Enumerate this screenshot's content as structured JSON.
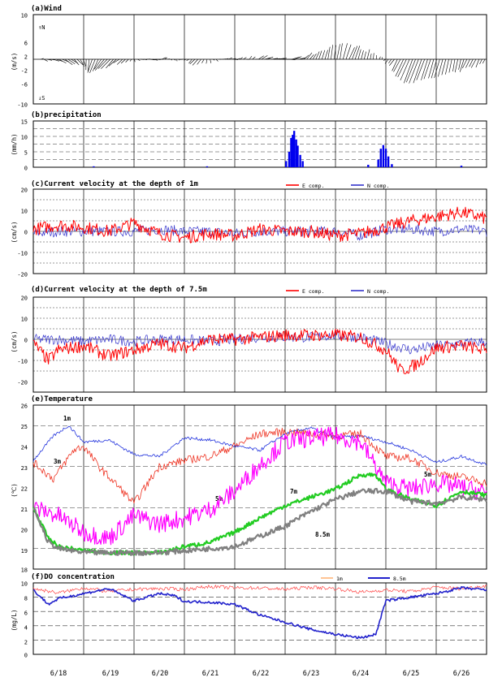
{
  "chart_data": [
    {
      "id": "wind",
      "type": "vector",
      "title": "(a)Wind",
      "ylabel": "(m/s)",
      "ylim": [
        -10,
        10
      ],
      "yticks": [
        "10",
        "6",
        "2",
        "-2",
        "-6",
        "-10"
      ],
      "annotations": [
        {
          "text": "↑N"
        },
        {
          "text": "↓S"
        }
      ],
      "series": [
        {
          "name": "wind-vectors",
          "color": "#000000",
          "x": [
            0,
            0.3,
            0.6,
            0.9,
            1.2,
            1.5,
            1.8,
            2.1,
            2.4,
            2.7,
            3,
            3.3,
            3.6,
            3.9,
            4.2,
            4.5,
            4.8,
            5.1,
            5.4,
            5.7,
            6,
            6.3,
            6.6,
            6.9,
            7.2,
            7.5,
            7.8,
            8.1,
            8.4,
            8.7,
            9
          ],
          "u": [
            0.5,
            1,
            1.5,
            1,
            -1,
            -2,
            -1,
            0.5,
            1,
            0.5,
            -0.5,
            -1,
            0.5,
            1,
            0.5,
            1,
            1.5,
            1.5,
            1,
            0.5,
            0.5,
            1,
            0.5,
            0,
            -1,
            -2,
            -1.5,
            -1,
            -0.5,
            -1,
            -0.5
          ],
          "v": [
            0,
            -0.3,
            -0.8,
            -1.5,
            -3,
            -2,
            -0.8,
            -0.2,
            0,
            0.2,
            -0.5,
            -1,
            -0.5,
            0,
            0.3,
            0.5,
            0.2,
            0,
            1,
            2,
            3.5,
            3,
            2,
            0.5,
            -2,
            -5,
            -5,
            -4,
            -3,
            -2,
            -1
          ]
        }
      ]
    },
    {
      "id": "precip",
      "type": "bar",
      "title": "(b)precipitation",
      "ylabel": "(mm/h)",
      "ylim": [
        0,
        15
      ],
      "yticks": [
        "15",
        "10",
        "5",
        "0"
      ],
      "series": [
        {
          "name": "precipitation",
          "color": "#0000ee",
          "x": [
            1.2,
            3.45,
            5.02,
            5.08,
            5.12,
            5.15,
            5.18,
            5.22,
            5.25,
            5.3,
            5.35,
            6.65,
            6.85,
            6.9,
            6.95,
            7.0,
            7.05,
            7.12,
            8.5
          ],
          "values": [
            0.3,
            0.3,
            2,
            5,
            9.5,
            10.5,
            11.8,
            9,
            7,
            4,
            2,
            0.8,
            2.5,
            6,
            7.2,
            6,
            3.5,
            1,
            0.5
          ]
        }
      ]
    },
    {
      "id": "cur1",
      "type": "line",
      "title": "(c)Current velocity at the depth of 1m",
      "ylabel": "(cm/s)",
      "ylim": [
        -20,
        20
      ],
      "yticks": [
        "20",
        "10",
        "0",
        "-10",
        "-20"
      ],
      "series": [
        {
          "name": "E comp.",
          "color": "#ff0000",
          "x": [
            0,
            0.5,
            1,
            1.5,
            2,
            2.5,
            3,
            3.5,
            4,
            4.5,
            5,
            5.5,
            6,
            6.5,
            7,
            7.5,
            8,
            8.5,
            9
          ],
          "values": [
            1,
            3,
            2,
            0,
            4,
            -1,
            -3,
            -1,
            -2,
            1,
            0,
            0,
            -2,
            -1,
            2,
            5,
            7,
            9,
            6
          ]
        },
        {
          "name": "N comp.",
          "color": "#3333cc",
          "x": [
            0,
            0.5,
            1,
            1.5,
            2,
            2.5,
            3,
            3.5,
            4,
            4.5,
            5,
            5.5,
            6,
            6.5,
            7,
            7.5,
            8,
            8.5,
            9
          ],
          "values": [
            -1,
            0,
            0,
            0,
            0,
            1,
            0,
            0,
            -1,
            0,
            0,
            0,
            0,
            -2,
            1,
            1,
            0,
            1,
            0
          ]
        }
      ]
    },
    {
      "id": "cur75",
      "type": "line",
      "title": "(d)Current velocity at the depth of 7.5m",
      "ylabel": "(cm/s)",
      "ylim": [
        -25,
        20
      ],
      "yticks": [
        "20",
        "10",
        "0",
        "-10",
        "-20"
      ],
      "series": [
        {
          "name": "E comp.",
          "color": "#ff0000",
          "x": [
            0,
            0.3,
            0.5,
            1,
            1.5,
            2,
            2.5,
            3,
            3.5,
            4,
            4.5,
            5,
            5.5,
            6,
            6.5,
            7,
            7.3,
            7.6,
            8,
            8.5,
            9
          ],
          "values": [
            -2,
            -10,
            -5,
            -3,
            -8,
            -5,
            -2,
            -4,
            0,
            0,
            1,
            2,
            2,
            2,
            1,
            -5,
            -15,
            -12,
            -4,
            -3,
            -5
          ]
        },
        {
          "name": "N comp.",
          "color": "#3333cc",
          "x": [
            0,
            0.5,
            1,
            1.5,
            2,
            2.5,
            3,
            3.5,
            4,
            4.5,
            5,
            5.5,
            6,
            6.5,
            7,
            7.5,
            8,
            8.5,
            9
          ],
          "values": [
            0,
            0,
            -1,
            0,
            -1,
            0,
            0,
            -1,
            0,
            1,
            1,
            1,
            2,
            1,
            -2,
            -5,
            -3,
            -2,
            -1
          ]
        }
      ]
    },
    {
      "id": "temp",
      "type": "line",
      "title": "(e)Temperature",
      "ylabel": "(℃)",
      "ylim": [
        18,
        26
      ],
      "yticks": [
        "26",
        "25",
        "24",
        "23",
        "22",
        "21",
        "20",
        "19",
        "18"
      ],
      "annotations": [
        {
          "text": "1m"
        },
        {
          "text": "3m"
        },
        {
          "text": "5m"
        },
        {
          "text": "7m"
        },
        {
          "text": "8.5m"
        },
        {
          "text": "5m"
        }
      ],
      "series": [
        {
          "name": "1m",
          "color": "#2233dd",
          "x": [
            0,
            0.4,
            0.7,
            1,
            1.5,
            2,
            2.5,
            3,
            3.5,
            4,
            4.5,
            5,
            5.5,
            6,
            6.5,
            7,
            7.5,
            8,
            8.5,
            9
          ],
          "values": [
            23.3,
            24.5,
            25,
            24.2,
            24.3,
            23.6,
            23.5,
            24.4,
            24.3,
            24,
            23.8,
            24.6,
            24.9,
            24.4,
            24.5,
            24.2,
            23.8,
            23.2,
            23.5,
            23.1
          ]
        },
        {
          "name": "3m",
          "color": "#ee3322",
          "x": [
            0,
            0.4,
            0.8,
            1,
            1.3,
            1.5,
            1.7,
            2,
            2.5,
            3,
            3.5,
            4,
            4.5,
            5,
            5.5,
            6,
            6.5,
            7,
            7.5,
            8,
            8.5,
            9
          ],
          "values": [
            23.2,
            22.4,
            23.8,
            24,
            23,
            22.5,
            22,
            21.2,
            23,
            23.3,
            23.5,
            24,
            24.6,
            24.7,
            24.6,
            24.5,
            24.6,
            23.5,
            23.4,
            22.7,
            22.5,
            22.2
          ]
        },
        {
          "name": "5m",
          "color": "#ff00ff",
          "x": [
            0,
            0.5,
            1,
            1.5,
            2,
            2.5,
            3,
            3.5,
            4,
            4.5,
            5,
            5.5,
            6,
            6.5,
            7,
            7.5,
            8,
            8.5,
            9
          ],
          "values": [
            21,
            20.6,
            19.8,
            19.5,
            20.6,
            20.2,
            20.5,
            20.9,
            21.8,
            23.1,
            24.2,
            24.4,
            24.5,
            24.2,
            22.2,
            21.9,
            22.2,
            22,
            21.7
          ]
        },
        {
          "name": "7m",
          "color": "#22cc22",
          "x": [
            0,
            0.3,
            0.5,
            1,
            1.5,
            2,
            2.5,
            3,
            3.5,
            4,
            4.5,
            5,
            5.5,
            6,
            6.5,
            6.8,
            7,
            7.5,
            8,
            8.5,
            9
          ],
          "values": [
            21,
            19.5,
            19.1,
            18.9,
            18.8,
            18.8,
            18.8,
            19.1,
            19.3,
            19.8,
            20.5,
            21.1,
            21.5,
            21.9,
            22.6,
            22.6,
            21.9,
            21.4,
            21.1,
            21.8,
            21.6
          ]
        },
        {
          "name": "8.5m",
          "color": "#808080",
          "x": [
            0,
            0.3,
            0.5,
            1,
            1.5,
            2,
            2.5,
            3,
            3.5,
            4,
            4.5,
            5,
            5.5,
            6,
            6.5,
            7,
            7.5,
            8,
            8.5,
            9
          ],
          "values": [
            21,
            19.3,
            19,
            18.8,
            18.8,
            18.8,
            18.8,
            18.9,
            19,
            19.1,
            19.6,
            20.1,
            20.8,
            21.4,
            21.8,
            21.8,
            21.3,
            21.2,
            21.5,
            21.4
          ]
        }
      ]
    },
    {
      "id": "do",
      "type": "line",
      "title": "(f)DO concentration",
      "ylabel": "(mg/L)",
      "ylim": [
        0,
        10
      ],
      "yticks": [
        "10",
        "8",
        "6",
        "4",
        "2",
        "0"
      ],
      "series": [
        {
          "name": "1m",
          "color": "#ff4444",
          "x": [
            0,
            0.5,
            1,
            1.5,
            2,
            2.5,
            3,
            3.5,
            4,
            4.5,
            5,
            5.5,
            6,
            6.5,
            7,
            7.5,
            8,
            8.5,
            9
          ],
          "values": [
            9.2,
            8.6,
            9.3,
            8.8,
            9.1,
            9.2,
            9.1,
            9.5,
            9.3,
            9.3,
            9.1,
            9.4,
            9.2,
            8.7,
            9,
            8.8,
            9.4,
            9.2,
            9.6
          ]
        },
        {
          "name": "8.5m",
          "color": "#2222cc",
          "x": [
            0,
            0.3,
            0.5,
            1,
            1.5,
            2,
            2.5,
            2.8,
            3,
            3.5,
            4,
            4.5,
            5,
            5.5,
            6,
            6.3,
            6.5,
            6.8,
            7,
            7.5,
            8,
            8.5,
            9
          ],
          "values": [
            9,
            7,
            7.8,
            8.5,
            9.2,
            7.5,
            8.5,
            8.2,
            7.4,
            7.3,
            7,
            5.5,
            4.5,
            3.5,
            2.8,
            2.5,
            2.3,
            2.8,
            7.5,
            8,
            8.5,
            9.3,
            9
          ]
        }
      ]
    }
  ],
  "x_axis": {
    "ticks": [
      "6/18",
      "6/19",
      "6/20",
      "6/21",
      "6/22",
      "6/23",
      "6/24",
      "6/25",
      "6/26"
    ]
  }
}
